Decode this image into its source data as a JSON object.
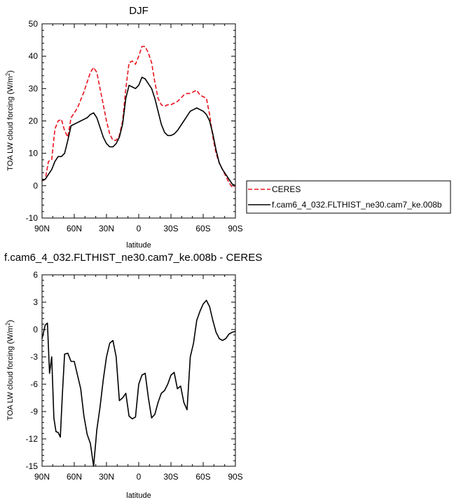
{
  "chart_data": [
    {
      "type": "line",
      "title": "DJF",
      "xlabel": "latitude",
      "ylabel": "TOA LW cloud forcing (W/m",
      "ylabel_sup": "2",
      "ylabel_close": ")",
      "xlim": [
        90,
        -90
      ],
      "ylim": [
        -10,
        50
      ],
      "xticks": [
        90,
        60,
        30,
        0,
        -30,
        -60,
        -90
      ],
      "xtick_labels": [
        "90N",
        "60N",
        "30N",
        "0",
        "30S",
        "60S",
        "90S"
      ],
      "yticks": [
        -10,
        0,
        10,
        20,
        30,
        40,
        50
      ],
      "ytick_labels": [
        "-10",
        "0",
        "10",
        "20",
        "30",
        "40",
        "50"
      ],
      "grid": false,
      "legend_position": "right",
      "x": [
        90,
        87,
        84,
        81,
        78,
        75,
        72,
        69,
        66,
        63,
        60,
        57,
        54,
        51,
        48,
        45,
        42,
        39,
        36,
        33,
        30,
        27,
        24,
        21,
        18,
        15,
        12,
        9,
        6,
        3,
        0,
        -3,
        -6,
        -9,
        -12,
        -15,
        -18,
        -21,
        -24,
        -27,
        -30,
        -33,
        -36,
        -39,
        -42,
        -45,
        -48,
        -51,
        -54,
        -57,
        -60,
        -63,
        -66,
        -69,
        -72,
        -75,
        -78,
        -81,
        -84,
        -87,
        -90
      ],
      "series": [
        {
          "name": "CERES",
          "color": "#e8141e",
          "dash": "dashed",
          "values": [
            1.5,
            2.0,
            7.5,
            8.0,
            17.5,
            20.0,
            20.5,
            17.0,
            15.0,
            21.0,
            22.5,
            24.0,
            26.5,
            29.0,
            32.0,
            35.0,
            36.5,
            35.0,
            30.0,
            25.0,
            20.0,
            16.0,
            14.0,
            14.0,
            15.5,
            20.0,
            30.0,
            38.0,
            38.5,
            37.5,
            40.0,
            43.0,
            43.0,
            41.0,
            38.0,
            32.0,
            27.0,
            25.0,
            24.5,
            25.0,
            25.0,
            25.5,
            26.0,
            27.0,
            28.0,
            28.5,
            28.5,
            29.0,
            29.5,
            28.0,
            27.5,
            27.0,
            22.0,
            15.0,
            10.0,
            7.0,
            5.0,
            3.0,
            1.0,
            -0.5,
            0.0
          ]
        },
        {
          "name": "f.cam6_4_032.FLTHIST_ne30.cam7_ke.008b",
          "color": "#000000",
          "dash": "solid",
          "values": [
            1.5,
            2.0,
            3.5,
            5.0,
            7.5,
            9.0,
            9.0,
            10.0,
            14.0,
            18.5,
            19.0,
            19.5,
            20.0,
            20.5,
            21.0,
            22.0,
            22.5,
            21.0,
            18.0,
            15.0,
            13.0,
            12.0,
            12.0,
            13.0,
            15.0,
            19.0,
            27.0,
            31.0,
            30.5,
            30.0,
            31.0,
            33.5,
            33.0,
            31.5,
            30.0,
            27.0,
            23.0,
            19.0,
            16.5,
            15.5,
            15.5,
            16.0,
            17.0,
            18.5,
            20.0,
            21.5,
            23.0,
            23.5,
            24.0,
            23.5,
            23.0,
            22.0,
            20.0,
            16.0,
            11.0,
            7.0,
            5.0,
            3.5,
            2.0,
            0.5,
            0.0
          ]
        }
      ]
    },
    {
      "type": "line",
      "title": "f.cam6_4_032.FLTHIST_ne30.cam7_ke.008b - CERES",
      "xlabel": "latitude",
      "ylabel": "TOA LW cloud forcing (W/m",
      "ylabel_sup": "2",
      "ylabel_close": ")",
      "xlim": [
        90,
        -90
      ],
      "ylim": [
        -15,
        6
      ],
      "xticks": [
        90,
        60,
        30,
        0,
        -30,
        -60,
        -90
      ],
      "xtick_labels": [
        "90N",
        "60N",
        "30N",
        "0",
        "30S",
        "60S",
        "90S"
      ],
      "yticks": [
        -15,
        -12,
        -9,
        -6,
        -3,
        0,
        3,
        6
      ],
      "ytick_labels": [
        "-15",
        "-12",
        "-9",
        "-6",
        "-3",
        "0",
        "3",
        "6"
      ],
      "grid": false,
      "x": [
        90,
        87,
        85,
        83,
        81,
        79,
        77,
        75,
        73,
        71,
        69,
        66,
        63,
        60,
        57,
        54,
        51,
        48,
        45,
        42,
        39,
        36,
        33,
        30,
        27,
        24,
        21,
        18,
        15,
        12,
        9,
        6,
        3,
        0,
        -3,
        -6,
        -9,
        -12,
        -15,
        -18,
        -21,
        -24,
        -27,
        -30,
        -33,
        -36,
        -39,
        -42,
        -45,
        -48,
        -51,
        -54,
        -57,
        -60,
        -63,
        -66,
        -69,
        -72,
        -75,
        -78,
        -81,
        -84,
        -87,
        -90
      ],
      "series": [
        {
          "color": "#000000",
          "dash": "solid",
          "values": [
            -1.0,
            0.5,
            0.7,
            -4.8,
            -3.0,
            -9.7,
            -11.2,
            -11.3,
            -11.8,
            -7.0,
            -2.7,
            -2.6,
            -3.5,
            -3.5,
            -5.0,
            -6.5,
            -9.5,
            -11.5,
            -12.5,
            -15.0,
            -11.0,
            -8.5,
            -5.5,
            -3.0,
            -1.5,
            -1.2,
            -3.0,
            -7.8,
            -7.5,
            -7.0,
            -9.5,
            -9.8,
            -9.6,
            -6.0,
            -5.0,
            -4.8,
            -7.5,
            -9.7,
            -9.3,
            -8.0,
            -7.0,
            -6.7,
            -6.0,
            -5.0,
            -4.7,
            -6.5,
            -6.2,
            -8.0,
            -8.8,
            -3.0,
            -1.5,
            1.0,
            2.0,
            2.8,
            3.2,
            2.5,
            1.0,
            -0.3,
            -1.0,
            -1.2,
            -1.0,
            -0.5,
            -0.3,
            -0.2
          ]
        }
      ]
    }
  ]
}
